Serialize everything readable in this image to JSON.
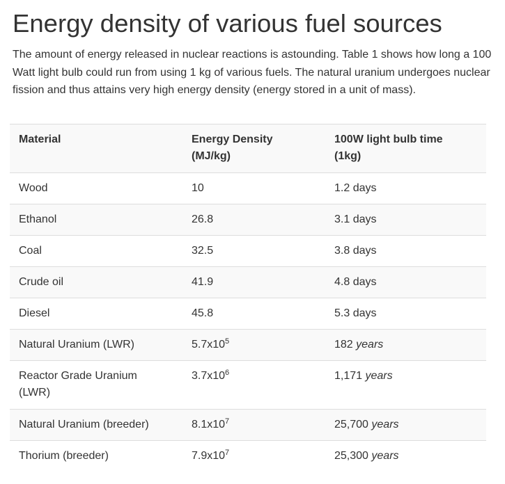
{
  "title": "Energy density of various fuel sources",
  "intro": "The amount of energy released in nuclear reactions is astounding. Table 1 shows how long a 100 Watt light bulb could run from using 1 kg of various fuels. The natural uranium undergoes nuclear fission and thus attains very high energy density (energy stored in a unit of mass).",
  "table": {
    "headers": {
      "material": "Material",
      "density_line1": "Energy Density",
      "density_line2": "(MJ/kg)",
      "bulb_line1": "100W light bulb time",
      "bulb_line2": "(1kg)"
    },
    "rows": [
      {
        "material": "Wood",
        "density": "10",
        "time": "1.2 days"
      },
      {
        "material": "Ethanol",
        "density": "26.8",
        "time": "3.1 days"
      },
      {
        "material": "Coal",
        "density": "32.5",
        "time": "3.8 days"
      },
      {
        "material": "Crude oil",
        "density": "41.9",
        "time": "4.8 days"
      },
      {
        "material": "Diesel",
        "density": "45.8",
        "time": "5.3 days"
      },
      {
        "material": "Natural Uranium (LWR)",
        "density_base": "5.7x10",
        "density_exp": "5",
        "time_num": "182",
        "time_unit": "years"
      },
      {
        "material_line1": "Reactor Grade Uranium",
        "material_line2": "(LWR)",
        "density_base": "3.7x10",
        "density_exp": "6",
        "time_num": "1,171",
        "time_unit": "years"
      },
      {
        "material": "Natural Uranium (breeder)",
        "density_base": "8.1x10",
        "density_exp": "7",
        "time_num": "25,700",
        "time_unit": "years"
      },
      {
        "material": "Thorium (breeder)",
        "density_base": "7.9x10",
        "density_exp": "7",
        "time_num": "25,300",
        "time_unit": "years"
      }
    ]
  }
}
